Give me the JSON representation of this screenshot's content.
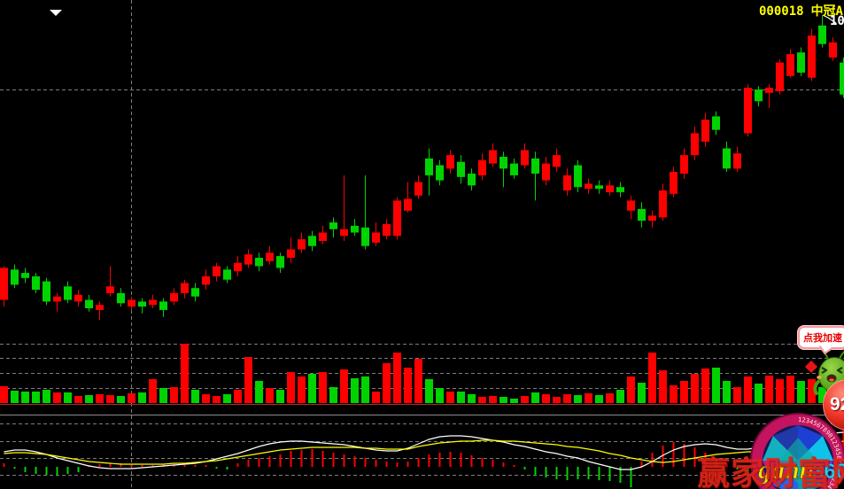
{
  "header": {
    "code": "000018",
    "name": "中冠A",
    "price_label": "10"
  },
  "promo": {
    "bubble_label": "点我加速",
    "badge_value": "92"
  },
  "watermark": {
    "logo_gann": "gann",
    "logo_360": "360",
    "ring_digits": "1234567890123456789012345678901234567890",
    "site_text": "赢家财富网"
  },
  "colors": {
    "up": "#ff0000",
    "down": "#00d400",
    "dif_line": "#ffffff",
    "dea_line": "#ffff00",
    "grid": "#7d7d7d",
    "label_yellow": "#ffff00",
    "background": "#000000"
  },
  "chart_data": {
    "type": "candlestick",
    "panes": [
      "price",
      "volume",
      "macd"
    ],
    "price_gridline": 10.0,
    "ylim": [
      8.6,
      10.5
    ],
    "legend": [],
    "candles": [
      [
        8.75,
        8.95,
        8.71,
        8.94
      ],
      [
        8.93,
        8.96,
        8.82,
        8.84
      ],
      [
        8.91,
        8.94,
        8.85,
        8.88
      ],
      [
        8.89,
        8.91,
        8.79,
        8.81
      ],
      [
        8.86,
        8.88,
        8.72,
        8.74
      ],
      [
        8.74,
        8.79,
        8.68,
        8.77
      ],
      [
        8.83,
        8.86,
        8.73,
        8.75
      ],
      [
        8.74,
        8.81,
        8.71,
        8.78
      ],
      [
        8.75,
        8.78,
        8.68,
        8.7
      ],
      [
        8.69,
        8.74,
        8.63,
        8.72
      ],
      [
        8.79,
        8.95,
        8.77,
        8.83
      ],
      [
        8.79,
        8.82,
        8.71,
        8.73
      ],
      [
        8.71,
        8.77,
        8.69,
        8.75
      ],
      [
        8.74,
        8.76,
        8.67,
        8.71
      ],
      [
        8.72,
        8.78,
        8.7,
        8.75
      ],
      [
        8.74,
        8.76,
        8.65,
        8.69
      ],
      [
        8.74,
        8.82,
        8.72,
        8.79
      ],
      [
        8.79,
        8.87,
        8.76,
        8.85
      ],
      [
        8.82,
        8.85,
        8.74,
        8.77
      ],
      [
        8.84,
        8.93,
        8.81,
        8.89
      ],
      [
        8.89,
        8.97,
        8.86,
        8.95
      ],
      [
        8.93,
        8.95,
        8.85,
        8.87
      ],
      [
        8.92,
        9.01,
        8.89,
        8.97
      ],
      [
        8.96,
        9.05,
        8.94,
        9.02
      ],
      [
        9.0,
        9.03,
        8.92,
        8.95
      ],
      [
        8.98,
        9.07,
        8.96,
        9.03
      ],
      [
        9.01,
        9.03,
        8.91,
        8.94
      ],
      [
        9.0,
        9.12,
        8.97,
        9.05
      ],
      [
        9.05,
        9.15,
        9.03,
        9.11
      ],
      [
        9.13,
        9.16,
        9.04,
        9.07
      ],
      [
        9.1,
        9.19,
        9.08,
        9.15
      ],
      [
        9.21,
        9.24,
        9.12,
        9.17
      ],
      [
        9.13,
        9.49,
        9.1,
        9.17
      ],
      [
        9.19,
        9.23,
        9.13,
        9.15
      ],
      [
        9.18,
        9.49,
        9.05,
        9.07
      ],
      [
        9.09,
        9.21,
        9.07,
        9.15
      ],
      [
        9.13,
        9.23,
        9.11,
        9.2
      ],
      [
        9.13,
        9.36,
        9.11,
        9.34
      ],
      [
        9.28,
        9.45,
        9.27,
        9.35
      ],
      [
        9.37,
        9.49,
        9.35,
        9.45
      ],
      [
        9.59,
        9.65,
        9.37,
        9.49
      ],
      [
        9.55,
        9.58,
        9.43,
        9.46
      ],
      [
        9.53,
        9.64,
        9.5,
        9.61
      ],
      [
        9.57,
        9.61,
        9.44,
        9.48
      ],
      [
        9.5,
        9.53,
        9.4,
        9.43
      ],
      [
        9.49,
        9.62,
        9.46,
        9.58
      ],
      [
        9.56,
        9.68,
        9.54,
        9.64
      ],
      [
        9.6,
        9.63,
        9.42,
        9.53
      ],
      [
        9.56,
        9.59,
        9.47,
        9.49
      ],
      [
        9.55,
        9.68,
        9.53,
        9.64
      ],
      [
        9.59,
        9.63,
        9.34,
        9.5
      ],
      [
        9.46,
        9.6,
        9.43,
        9.56
      ],
      [
        9.54,
        9.65,
        9.51,
        9.61
      ],
      [
        9.4,
        9.53,
        9.37,
        9.49
      ],
      [
        9.55,
        9.58,
        9.39,
        9.42
      ],
      [
        9.41,
        9.47,
        9.38,
        9.44
      ],
      [
        9.43,
        9.46,
        9.38,
        9.41
      ],
      [
        9.39,
        9.46,
        9.37,
        9.43
      ],
      [
        9.42,
        9.45,
        9.36,
        9.39
      ],
      [
        9.28,
        9.37,
        9.23,
        9.34
      ],
      [
        9.29,
        9.33,
        9.18,
        9.22
      ],
      [
        9.22,
        9.28,
        9.18,
        9.25
      ],
      [
        9.24,
        9.44,
        9.22,
        9.4
      ],
      [
        9.38,
        9.54,
        9.36,
        9.51
      ],
      [
        9.5,
        9.65,
        9.47,
        9.61
      ],
      [
        9.61,
        9.78,
        9.58,
        9.74
      ],
      [
        9.69,
        9.86,
        9.66,
        9.82
      ],
      [
        9.84,
        9.87,
        9.73,
        9.76
      ],
      [
        9.65,
        9.69,
        9.51,
        9.53
      ],
      [
        9.53,
        9.66,
        9.51,
        9.62
      ],
      [
        9.74,
        10.03,
        9.72,
        10.01
      ],
      [
        10.0,
        10.02,
        9.9,
        9.93
      ],
      [
        9.98,
        10.03,
        9.89,
        10.01
      ],
      [
        9.99,
        10.18,
        9.97,
        10.16
      ],
      [
        10.08,
        10.24,
        10.07,
        10.21
      ],
      [
        10.22,
        10.25,
        10.08,
        10.1
      ],
      [
        10.07,
        10.36,
        10.05,
        10.32
      ],
      [
        10.38,
        10.44,
        10.25,
        10.27
      ],
      [
        10.19,
        10.31,
        10.17,
        10.28
      ],
      [
        10.16,
        10.19,
        9.95,
        9.97
      ]
    ],
    "volume": [
      1900,
      1400,
      1300,
      1300,
      1500,
      1200,
      1200,
      800,
      900,
      1000,
      900,
      800,
      1100,
      1200,
      2700,
      1700,
      1800,
      6700,
      1500,
      1000,
      800,
      1000,
      1500,
      5200,
      2500,
      1700,
      1500,
      3500,
      3000,
      3300,
      3500,
      1800,
      3800,
      2800,
      3000,
      1300,
      4500,
      5700,
      4000,
      5000,
      2700,
      1700,
      1300,
      1300,
      1000,
      700,
      800,
      700,
      500,
      800,
      1200,
      1000,
      700,
      1000,
      900,
      1100,
      900,
      1100,
      1500,
      3000,
      2300,
      5700,
      3700,
      2000,
      2500,
      3300,
      3900,
      4000,
      2500,
      1800,
      3000,
      2200,
      3100,
      2700,
      3100,
      2500,
      2700,
      1800,
      2300,
      4100
    ],
    "macd": {
      "dif": [
        0.18,
        0.2,
        0.2,
        0.18,
        0.15,
        0.11,
        0.08,
        0.05,
        0.02,
        0.0,
        -0.01,
        -0.01,
        -0.01,
        0.0,
        0.01,
        0.02,
        0.03,
        0.04,
        0.05,
        0.07,
        0.1,
        0.13,
        0.16,
        0.2,
        0.24,
        0.27,
        0.29,
        0.3,
        0.3,
        0.29,
        0.28,
        0.27,
        0.26,
        0.24,
        0.22,
        0.2,
        0.19,
        0.19,
        0.22,
        0.27,
        0.32,
        0.35,
        0.36,
        0.36,
        0.35,
        0.33,
        0.31,
        0.29,
        0.26,
        0.24,
        0.21,
        0.18,
        0.16,
        0.13,
        0.11,
        0.07,
        0.04,
        0.01,
        -0.02,
        -0.02,
        0.01,
        0.07,
        0.14,
        0.2,
        0.24,
        0.26,
        0.27,
        0.26,
        0.23,
        0.21,
        0.21,
        0.23,
        0.25,
        0.28,
        0.31,
        0.34,
        0.36,
        0.38,
        0.39,
        0.4
      ],
      "dea": [
        0.16,
        0.17,
        0.17,
        0.16,
        0.15,
        0.13,
        0.11,
        0.09,
        0.07,
        0.06,
        0.05,
        0.04,
        0.04,
        0.04,
        0.04,
        0.04,
        0.05,
        0.05,
        0.06,
        0.07,
        0.08,
        0.1,
        0.12,
        0.14,
        0.16,
        0.18,
        0.2,
        0.21,
        0.22,
        0.23,
        0.23,
        0.23,
        0.23,
        0.23,
        0.22,
        0.22,
        0.21,
        0.21,
        0.21,
        0.24,
        0.26,
        0.28,
        0.29,
        0.3,
        0.3,
        0.31,
        0.31,
        0.3,
        0.3,
        0.29,
        0.28,
        0.27,
        0.26,
        0.24,
        0.23,
        0.21,
        0.19,
        0.16,
        0.14,
        0.11,
        0.09,
        0.07,
        0.06,
        0.07,
        0.09,
        0.11,
        0.13,
        0.15,
        0.16,
        0.17,
        0.18,
        0.18,
        0.19,
        0.2,
        0.21,
        0.23,
        0.24,
        0.26,
        0.28,
        0.3
      ],
      "hist": [
        0.04,
        -0.02,
        -0.06,
        -0.08,
        -0.09,
        -0.09,
        -0.08,
        -0.06,
        0.02,
        0.03,
        0.04,
        0.04,
        0.03,
        0.02,
        0.02,
        0.03,
        0.03,
        0.02,
        0.02,
        0.02,
        -0.02,
        -0.03,
        0.04,
        0.08,
        0.1,
        0.12,
        0.14,
        0.18,
        0.19,
        0.2,
        0.18,
        0.16,
        0.14,
        0.12,
        0.1,
        0.08,
        0.06,
        0.05,
        0.06,
        0.1,
        0.14,
        0.16,
        0.17,
        0.16,
        0.13,
        0.1,
        0.08,
        0.05,
        0.02,
        -0.03,
        -0.1,
        -0.12,
        -0.14,
        -0.15,
        -0.14,
        -0.14,
        -0.15,
        -0.16,
        -0.18,
        -0.23,
        0.06,
        0.16,
        0.24,
        0.28,
        0.26,
        0.22,
        0.16,
        0.1,
        0.04,
        -0.03,
        -0.05,
        -0.06,
        -0.05,
        0.06,
        0.1,
        0.16,
        0.22,
        0.28,
        0.35,
        0.42
      ]
    }
  }
}
